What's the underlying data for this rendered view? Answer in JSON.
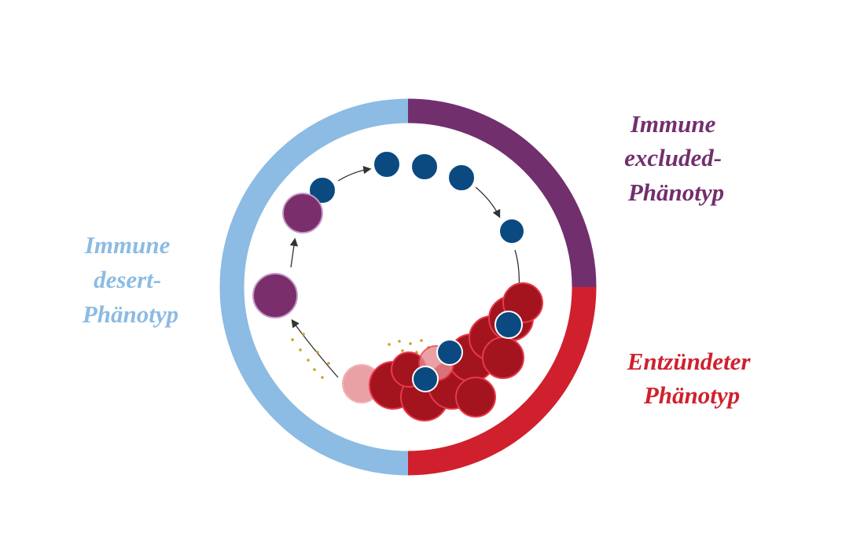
{
  "labels": [
    {
      "lines": [
        "Immune",
        "desert-",
        "Phänotyp"
      ]
    },
    {
      "lines": [
        "Immune",
        "excluded-",
        "Phänotyp"
      ]
    },
    {
      "lines": [
        "Entzündeter",
        "Phänotyp"
      ]
    }
  ]
}
